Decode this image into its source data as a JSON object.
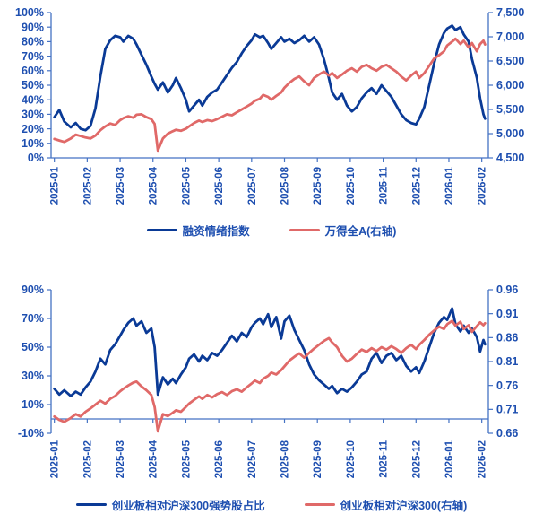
{
  "colors": {
    "blue_line": "#0a3a96",
    "red_line": "#e06968",
    "axis": "#4472c4",
    "tick_label": "#1e4fb0"
  },
  "chart_data": [
    {
      "type": "line",
      "title": "",
      "grid": false,
      "legend_position": "bottom",
      "x_tick_labels": [
        "2025-01",
        "2025-02",
        "2025-03",
        "2025-04",
        "2025-05",
        "2025-06",
        "2025-07",
        "2025-08",
        "2025-09",
        "2025-10",
        "2025-11",
        "2025-12",
        "2026-01",
        "2026-02"
      ],
      "x_domain": [
        -0.1,
        13.2
      ],
      "x": [
        0,
        0.15,
        0.3,
        0.5,
        0.65,
        0.8,
        0.95,
        1.1,
        1.25,
        1.4,
        1.55,
        1.7,
        1.85,
        2.0,
        2.1,
        2.25,
        2.4,
        2.5,
        2.65,
        2.8,
        2.95,
        3.05,
        3.15,
        3.3,
        3.45,
        3.6,
        3.7,
        3.85,
        4.0,
        4.1,
        4.25,
        4.4,
        4.5,
        4.65,
        4.8,
        4.95,
        5.1,
        5.25,
        5.4,
        5.55,
        5.7,
        5.85,
        6.0,
        6.1,
        6.25,
        6.35,
        6.5,
        6.6,
        6.75,
        6.9,
        7.0,
        7.15,
        7.3,
        7.45,
        7.6,
        7.75,
        7.9,
        8.05,
        8.2,
        8.35,
        8.45,
        8.6,
        8.75,
        8.9,
        9.05,
        9.2,
        9.35,
        9.5,
        9.65,
        9.8,
        9.95,
        10.1,
        10.25,
        10.4,
        10.55,
        10.7,
        10.85,
        11.0,
        11.1,
        11.25,
        11.4,
        11.55,
        11.7,
        11.85,
        11.95,
        12.1,
        12.2,
        12.35,
        12.45,
        12.6,
        12.7,
        12.85,
        12.95,
        13.05,
        13.1
      ],
      "left_axis": {
        "min": 0,
        "max": 100,
        "tick_values": [
          0,
          10,
          20,
          30,
          40,
          50,
          60,
          70,
          80,
          90,
          100
        ],
        "tick_labels": [
          "0%",
          "10%",
          "20%",
          "30%",
          "40%",
          "50%",
          "60%",
          "70%",
          "80%",
          "90%",
          "100%"
        ]
      },
      "right_axis": {
        "min": 4500,
        "max": 7500,
        "tick_values": [
          4500,
          5000,
          5500,
          6000,
          6500,
          7000,
          7500
        ],
        "tick_labels": [
          "4,500",
          "5,000",
          "5,500",
          "6,000",
          "6,500",
          "7,000",
          "7,500"
        ]
      },
      "x_axis_position": 0,
      "series": [
        {
          "name": "融资情绪指数",
          "axis": "left",
          "color_key": "blue_line",
          "values": [
            28,
            33,
            25,
            21,
            24,
            20,
            19,
            22,
            34,
            56,
            75,
            81,
            84,
            83,
            80,
            84,
            82,
            78,
            71,
            64,
            56,
            51,
            47,
            52,
            45,
            50,
            55,
            48,
            40,
            32,
            36,
            40,
            36,
            42,
            45,
            47,
            52,
            57,
            62,
            66,
            72,
            77,
            81,
            85,
            83,
            84,
            79,
            75,
            79,
            83,
            80,
            82,
            79,
            81,
            84,
            80,
            83,
            78,
            68,
            55,
            45,
            40,
            44,
            36,
            32,
            35,
            41,
            45,
            48,
            44,
            50,
            46,
            42,
            36,
            30,
            26,
            24,
            23,
            27,
            35,
            50,
            65,
            78,
            86,
            89,
            91,
            88,
            90,
            85,
            80,
            68,
            55,
            41,
            30,
            27
          ]
        },
        {
          "name": "万得全A(右轴)",
          "axis": "right",
          "color_key": "red_line",
          "values": [
            4890,
            4860,
            4830,
            4900,
            4980,
            4950,
            4920,
            4900,
            4960,
            5070,
            5150,
            5210,
            5180,
            5280,
            5320,
            5360,
            5330,
            5390,
            5400,
            5340,
            5300,
            5200,
            4650,
            4900,
            5000,
            5050,
            5080,
            5060,
            5100,
            5150,
            5220,
            5270,
            5240,
            5280,
            5260,
            5300,
            5350,
            5400,
            5380,
            5440,
            5500,
            5560,
            5620,
            5680,
            5720,
            5800,
            5760,
            5700,
            5780,
            5850,
            5950,
            6050,
            6130,
            6180,
            6080,
            6000,
            6150,
            6220,
            6280,
            6200,
            6250,
            6150,
            6220,
            6300,
            6350,
            6280,
            6380,
            6420,
            6350,
            6300,
            6380,
            6420,
            6350,
            6280,
            6180,
            6100,
            6200,
            6280,
            6150,
            6250,
            6400,
            6550,
            6620,
            6700,
            6820,
            6900,
            6960,
            6850,
            6920,
            6780,
            6870,
            6700,
            6850,
            6920,
            6840
          ]
        }
      ]
    },
    {
      "type": "line",
      "title": "",
      "grid": false,
      "legend_position": "bottom",
      "x_tick_labels": [
        "2025-01",
        "2025-02",
        "2025-03",
        "2025-04",
        "2025-05",
        "2025-06",
        "2025-07",
        "2025-08",
        "2025-09",
        "2025-10",
        "2025-11",
        "2025-12",
        "2026-01",
        "2026-02"
      ],
      "x_domain": [
        -0.1,
        13.2
      ],
      "x": [
        0,
        0.15,
        0.3,
        0.5,
        0.65,
        0.8,
        0.95,
        1.1,
        1.25,
        1.4,
        1.55,
        1.7,
        1.85,
        2.0,
        2.1,
        2.25,
        2.4,
        2.5,
        2.65,
        2.8,
        2.95,
        3.05,
        3.15,
        3.3,
        3.45,
        3.6,
        3.7,
        3.85,
        4.0,
        4.1,
        4.25,
        4.4,
        4.5,
        4.65,
        4.8,
        4.95,
        5.1,
        5.25,
        5.4,
        5.55,
        5.7,
        5.85,
        6.0,
        6.1,
        6.25,
        6.35,
        6.5,
        6.6,
        6.75,
        6.9,
        7.0,
        7.15,
        7.3,
        7.45,
        7.6,
        7.75,
        7.9,
        8.05,
        8.2,
        8.35,
        8.45,
        8.6,
        8.75,
        8.9,
        9.05,
        9.2,
        9.35,
        9.5,
        9.65,
        9.8,
        9.95,
        10.1,
        10.25,
        10.4,
        10.55,
        10.7,
        10.85,
        11.0,
        11.1,
        11.25,
        11.4,
        11.55,
        11.7,
        11.85,
        11.95,
        12.1,
        12.2,
        12.35,
        12.45,
        12.6,
        12.7,
        12.85,
        12.95,
        13.05,
        13.1
      ],
      "left_axis": {
        "min": -10,
        "max": 90,
        "tick_values": [
          -10,
          10,
          30,
          50,
          70,
          90
        ],
        "tick_labels": [
          "-10%",
          "10%",
          "30%",
          "50%",
          "70%",
          "90%"
        ]
      },
      "right_axis": {
        "min": 0.66,
        "max": 0.96,
        "tick_values": [
          0.66,
          0.71,
          0.76,
          0.81,
          0.86,
          0.91,
          0.96
        ],
        "tick_labels": [
          "0.66",
          "0.71",
          "0.76",
          "0.81",
          "0.86",
          "0.91",
          "0.96"
        ]
      },
      "x_axis_position": 0,
      "series": [
        {
          "name": "创业板相对沪深300强势股占比",
          "axis": "left",
          "color_key": "blue_line",
          "values": [
            21,
            17,
            20,
            16,
            19,
            17,
            22,
            26,
            33,
            42,
            38,
            48,
            52,
            58,
            62,
            67,
            70,
            65,
            68,
            60,
            63,
            50,
            17,
            29,
            24,
            28,
            25,
            31,
            36,
            42,
            45,
            40,
            44,
            41,
            46,
            44,
            48,
            53,
            58,
            54,
            60,
            57,
            64,
            67,
            70,
            66,
            73,
            64,
            71,
            56,
            68,
            72,
            62,
            55,
            48,
            38,
            31,
            27,
            24,
            21,
            23,
            18,
            21,
            19,
            22,
            26,
            31,
            33,
            42,
            46,
            39,
            44,
            46,
            41,
            44,
            37,
            33,
            36,
            32,
            40,
            50,
            60,
            67,
            71,
            69,
            77,
            66,
            61,
            65,
            60,
            63,
            57,
            47,
            55,
            52
          ]
        },
        {
          "name": "创业板相对沪深300(右轴)",
          "axis": "right",
          "color_key": "red_line",
          "values": [
            0.695,
            0.688,
            0.684,
            0.692,
            0.7,
            0.695,
            0.705,
            0.712,
            0.72,
            0.728,
            0.722,
            0.732,
            0.738,
            0.748,
            0.753,
            0.76,
            0.766,
            0.768,
            0.758,
            0.75,
            0.74,
            0.715,
            0.664,
            0.7,
            0.696,
            0.703,
            0.708,
            0.705,
            0.715,
            0.722,
            0.73,
            0.737,
            0.732,
            0.74,
            0.735,
            0.742,
            0.746,
            0.74,
            0.748,
            0.752,
            0.747,
            0.756,
            0.764,
            0.77,
            0.765,
            0.774,
            0.78,
            0.787,
            0.783,
            0.792,
            0.8,
            0.812,
            0.82,
            0.827,
            0.818,
            0.828,
            0.837,
            0.845,
            0.853,
            0.859,
            0.85,
            0.84,
            0.822,
            0.81,
            0.816,
            0.826,
            0.835,
            0.83,
            0.838,
            0.832,
            0.84,
            0.835,
            0.842,
            0.836,
            0.828,
            0.838,
            0.845,
            0.836,
            0.845,
            0.855,
            0.866,
            0.875,
            0.883,
            0.878,
            0.888,
            0.895,
            0.885,
            0.893,
            0.878,
            0.886,
            0.872,
            0.884,
            0.892,
            0.886,
            0.89
          ]
        }
      ]
    }
  ]
}
